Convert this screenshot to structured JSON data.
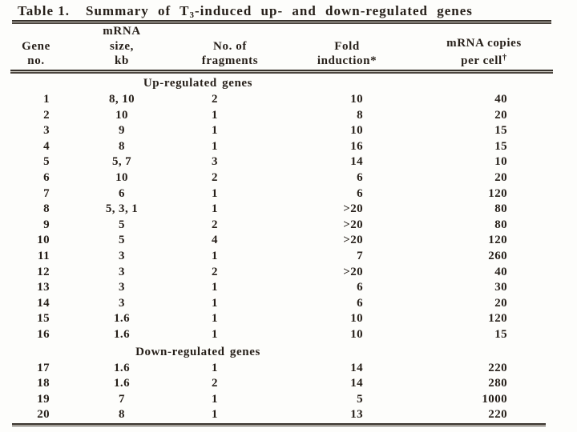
{
  "table": {
    "title": {
      "label": "Table 1.",
      "pre": "Summary of T",
      "sub": "3",
      "post": "-induced up- and down-regulated genes"
    },
    "header": {
      "col1": {
        "line1": "Gene",
        "line2": "no."
      },
      "col2": {
        "line0": "mRNA",
        "line1": "size,",
        "line2": "kb"
      },
      "col3": {
        "line1": "No. of",
        "line2": "fragments"
      },
      "col4": {
        "line1": "Fold",
        "line2": "induction*"
      },
      "col5": {
        "line1": "mRNA copies",
        "line2": "per cell",
        "sup": "†"
      }
    },
    "column_keys": [
      "gene_no",
      "mrna_size_kb",
      "no_of_fragments",
      "fold_induction",
      "mrna_copies_per_cell"
    ],
    "sections": [
      {
        "label": "Up-regulated genes",
        "rows": [
          [
            "1",
            "8, 10",
            "2",
            "10",
            "40"
          ],
          [
            "2",
            "10",
            "1",
            "8",
            "20"
          ],
          [
            "3",
            "9",
            "1",
            "10",
            "15"
          ],
          [
            "4",
            "8",
            "1",
            "16",
            "15"
          ],
          [
            "5",
            "5, 7",
            "3",
            "14",
            "10"
          ],
          [
            "6",
            "10",
            "2",
            "6",
            "20"
          ],
          [
            "7",
            "6",
            "1",
            "6",
            "120"
          ],
          [
            "8",
            "5, 3, 1",
            "1",
            ">20",
            "80"
          ],
          [
            "9",
            "5",
            "2",
            ">20",
            "80"
          ],
          [
            "10",
            "5",
            "4",
            ">20",
            "120"
          ],
          [
            "11",
            "3",
            "1",
            "7",
            "260"
          ],
          [
            "12",
            "3",
            "2",
            ">20",
            "40"
          ],
          [
            "13",
            "3",
            "1",
            "6",
            "30"
          ],
          [
            "14",
            "3",
            "1",
            "6",
            "20"
          ],
          [
            "15",
            "1.6",
            "1",
            "10",
            "120"
          ],
          [
            "16",
            "1.6",
            "1",
            "10",
            "15"
          ]
        ]
      },
      {
        "label": "Down-regulated genes",
        "rows": [
          [
            "17",
            "1.6",
            "1",
            "14",
            "220"
          ],
          [
            "18",
            "1.6",
            "2",
            "14",
            "280"
          ],
          [
            "19",
            "7",
            "1",
            "5",
            "1000"
          ],
          [
            "20",
            "8",
            "1",
            "13",
            "220"
          ]
        ]
      }
    ]
  },
  "colors": {
    "background": "#fdfdfb",
    "text": "#261f19",
    "rule_dark": "#37322c",
    "rule_light": "#cfccc4"
  }
}
